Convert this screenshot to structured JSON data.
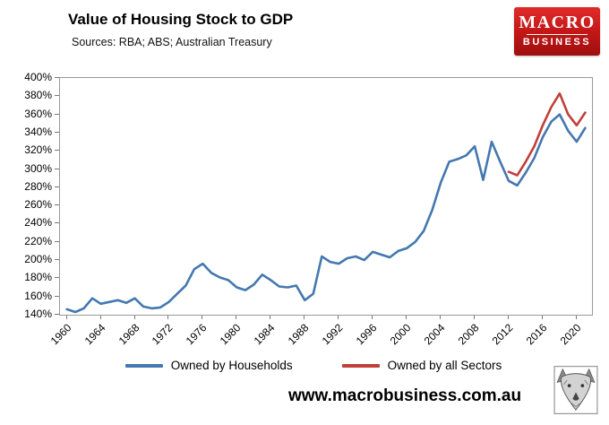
{
  "header": {
    "title": "Value of Housing Stock to GDP",
    "subtitle": "Sources: RBA; ABS; Australian Treasury"
  },
  "logo": {
    "line1": "MACRO",
    "line2": "BUSINESS",
    "bg_color": "#c01616"
  },
  "legend": [
    {
      "label": "Owned by Households",
      "color": "#4478b0"
    },
    {
      "label": "Owned by all Sectors",
      "color": "#bf4038"
    }
  ],
  "footer": {
    "url": "www.macrobusiness.com.au",
    "emblem": "wolf-head-emblem"
  },
  "chart_data": {
    "type": "line",
    "title": "Value of Housing Stock to GDP",
    "sources": "RBA; ABS; Australian Treasury",
    "xlabel": "",
    "ylabel": "",
    "ylim": [
      140,
      400
    ],
    "ytick_step": 20,
    "ytick_suffix": "%",
    "xrange": [
      1959.2,
      2021.8
    ],
    "xticks": [
      1960,
      1964,
      1968,
      1972,
      1976,
      1980,
      1984,
      1988,
      1992,
      1996,
      2000,
      2004,
      2008,
      2012,
      2016,
      2020
    ],
    "grid": false,
    "legend_position": "bottom",
    "series": [
      {
        "name": "Owned by Households",
        "color": "#4478b0",
        "x": [
          1960,
          1961,
          1962,
          1963,
          1964,
          1965,
          1966,
          1967,
          1968,
          1969,
          1970,
          1971,
          1972,
          1973,
          1974,
          1975,
          1976,
          1977,
          1978,
          1979,
          1980,
          1981,
          1982,
          1983,
          1984,
          1985,
          1986,
          1987,
          1988,
          1989,
          1990,
          1991,
          1992,
          1993,
          1994,
          1995,
          1996,
          1997,
          1998,
          1999,
          2000,
          2001,
          2002,
          2003,
          2004,
          2005,
          2006,
          2007,
          2008,
          2009,
          2010,
          2011,
          2012,
          2013,
          2014,
          2015,
          2016,
          2017,
          2018,
          2019,
          2020,
          2021
        ],
        "values": [
          146,
          143,
          147,
          158,
          152,
          154,
          156,
          153,
          158,
          149,
          147,
          148,
          154,
          163,
          172,
          190,
          196,
          186,
          181,
          178,
          170,
          167,
          173,
          184,
          178,
          171,
          170,
          172,
          156,
          163,
          204,
          198,
          196,
          202,
          204,
          200,
          209,
          206,
          203,
          210,
          213,
          220,
          232,
          255,
          285,
          308,
          311,
          315,
          325,
          288,
          330,
          308,
          287,
          282,
          296,
          312,
          335,
          352,
          360,
          342,
          330,
          345
        ]
      },
      {
        "name": "Owned by all Sectors",
        "color": "#bf4038",
        "x": [
          2012,
          2013,
          2014,
          2015,
          2016,
          2017,
          2018,
          2019,
          2020,
          2021
        ],
        "values": [
          297,
          293,
          308,
          325,
          348,
          368,
          383,
          360,
          348,
          362
        ]
      }
    ]
  }
}
